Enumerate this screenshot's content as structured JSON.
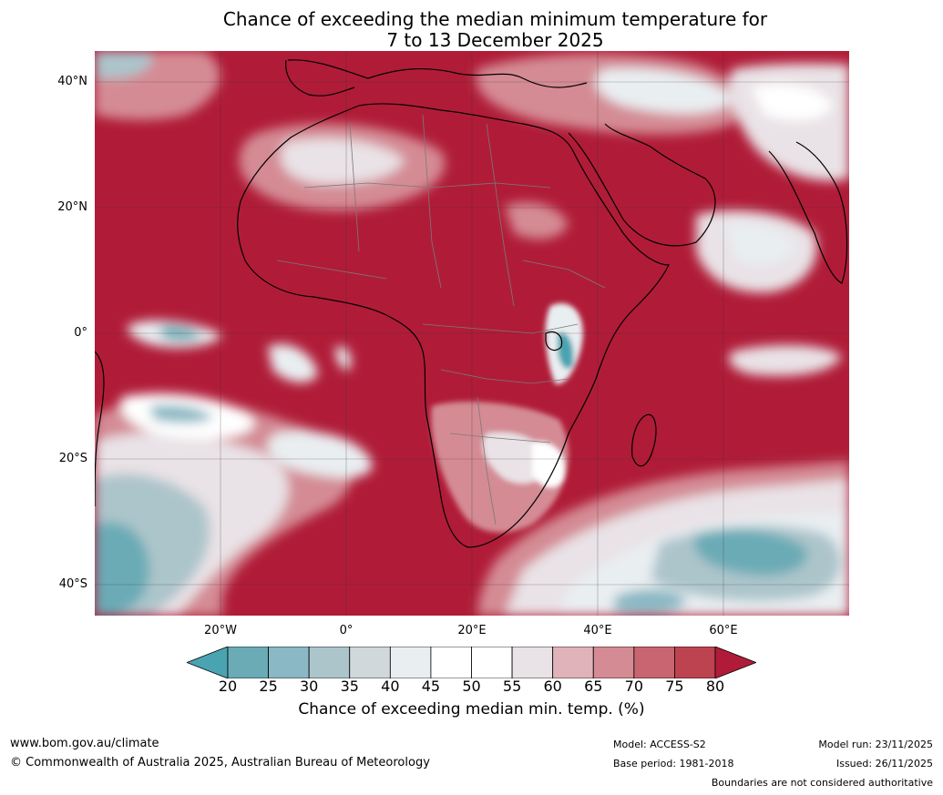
{
  "title": {
    "line1": "Chance of exceeding the median minimum temperature for",
    "line2": "7 to 13 December 2025"
  },
  "map": {
    "lat_labels": [
      "40°N",
      "20°N",
      "0°",
      "20°S",
      "40°S"
    ],
    "lon_labels": [
      "20°W",
      "0°",
      "20°E",
      "40°E",
      "60°E"
    ],
    "lat_values": [
      40,
      20,
      0,
      -20,
      -40
    ],
    "lon_values": [
      -20,
      0,
      20,
      40,
      60
    ],
    "extent": {
      "lon_min": -40,
      "lon_max": 80,
      "lat_min": -45,
      "lat_max": 45
    },
    "dominant_category": "80+",
    "land_outline_color": "#000000",
    "border_color": "#7a7a7a"
  },
  "colorbar": {
    "ticks": [
      "20",
      "25",
      "30",
      "35",
      "40",
      "45",
      "50",
      "55",
      "60",
      "65",
      "70",
      "75",
      "80"
    ],
    "colors": [
      "#4aa3b0",
      "#6aabb6",
      "#8ab8c4",
      "#acc5cb",
      "#d0d8db",
      "#e9eef1",
      "#ffffff",
      "#ffffff",
      "#e9e2e6",
      "#e0b3ba",
      "#d48b94",
      "#c96570",
      "#be4350",
      "#b01c38"
    ],
    "label": "Chance of exceeding median min. temp. (%)"
  },
  "footer": {
    "website": "www.bom.gov.au/climate",
    "copyright": "© Commonwealth of Australia 2025, Australian Bureau of Meteorology",
    "model": "Model: ACCESS-S2",
    "base_period": "Base period: 1981-2018",
    "model_run": "Model run: 23/11/2025",
    "issued": "Issued: 26/11/2025",
    "disclaimer": "Boundaries are not considered authoritative"
  }
}
